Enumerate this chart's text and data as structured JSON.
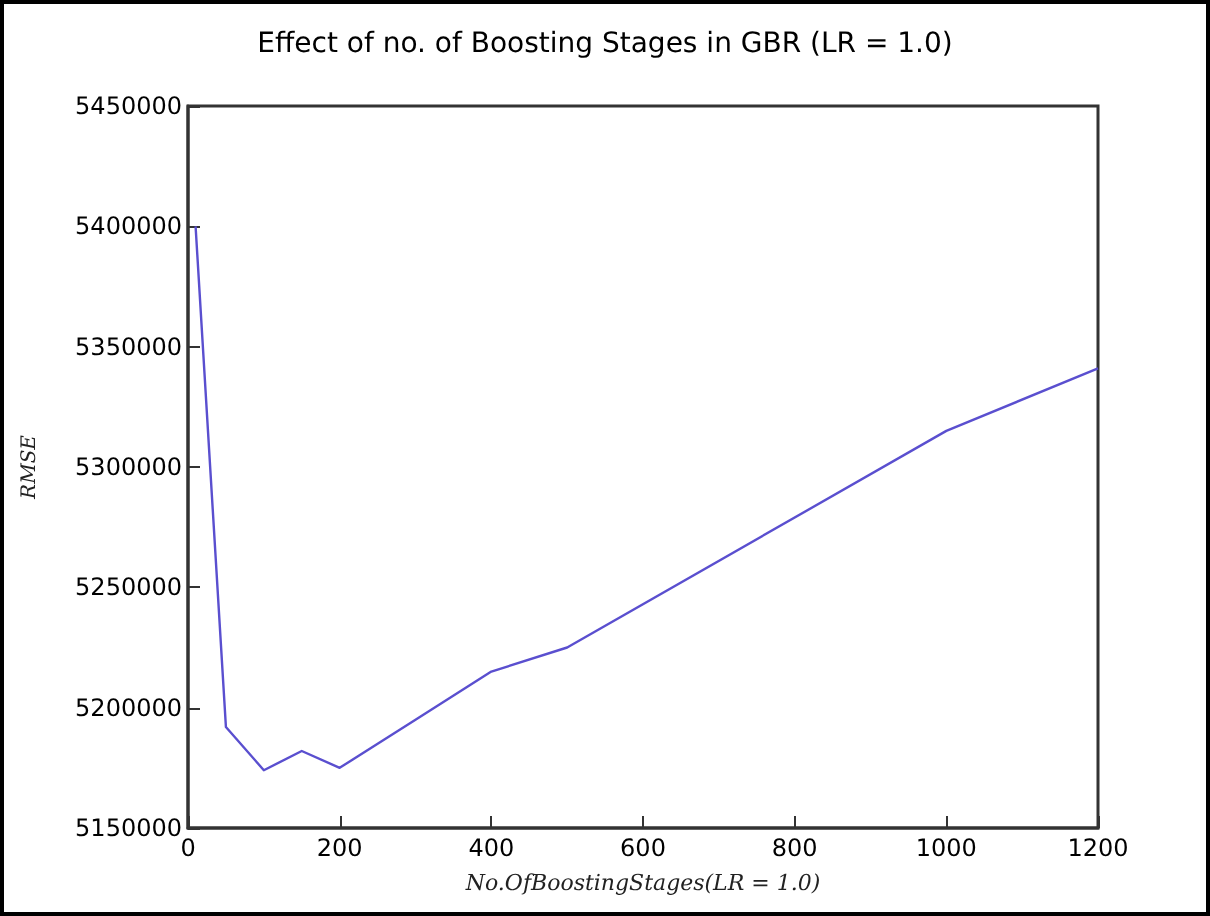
{
  "chart_data": {
    "type": "line",
    "title": "Effect of no. of Boosting Stages in GBR (LR = 1.0)",
    "xlabel": "No.OfBoostingStages(LR = 1.0)",
    "ylabel": "RMSE",
    "x": [
      10,
      50,
      100,
      150,
      200,
      300,
      400,
      500,
      1000,
      1200
    ],
    "series": [
      {
        "color": "#5a4fcf",
        "values": [
          5400000,
          5192000,
          5174000,
          5182000,
          5175000,
          5195000,
          5215000,
          5225000,
          5315000,
          5341000
        ]
      }
    ],
    "xlim": [
      0,
      1200
    ],
    "xticks": [
      0,
      200,
      400,
      600,
      800,
      1000,
      1200
    ],
    "ylim": [
      5150000,
      5450000
    ],
    "yticks": [
      5150000,
      5200000,
      5250000,
      5300000,
      5350000,
      5400000,
      5450000
    ],
    "grid": false,
    "marker": "none",
    "line_style": "solid"
  }
}
